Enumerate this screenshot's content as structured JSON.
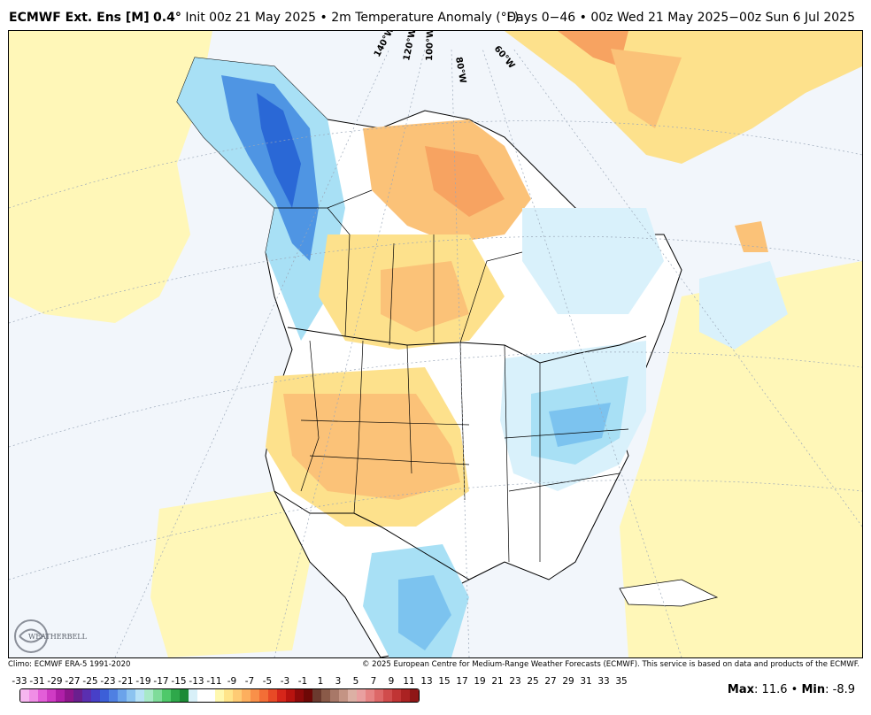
{
  "header": {
    "model": "ECMWF Ext. Ens [M]",
    "resolution": "0.4°",
    "init": "Init 00z 21 May 2025",
    "bullet": "•",
    "variable": "2m Temperature Anomaly (°F)",
    "valid": "Days 0−46 • 00z Wed 21 May 2025−00z Sun 6 Jul 2025"
  },
  "map": {
    "longitude_labels": [
      "140°W",
      "120°W",
      "100°W",
      "80°W",
      "60°W"
    ],
    "colors": {
      "ocean": "#f2f6fb",
      "land_neutral": "#ffffff",
      "warm_1": "#fff7b8",
      "warm_2": "#fde18c",
      "warm_3": "#fbc278",
      "warm_4": "#f7a361",
      "cool_1": "#d9f1fb",
      "cool_2": "#a8e0f5",
      "cool_3": "#7cc3ef",
      "cool_4": "#4f95e3",
      "cool_5": "#2a68d6",
      "border": "#000000",
      "graticule": "#9aa7b8"
    }
  },
  "logo": {
    "text": "WEATHERBELL"
  },
  "credits": {
    "climo": "Climo: ECMWF ERA-5 1991-2020",
    "copyright": "© 2025 European Centre for Medium-Range Weather Forecasts (ECMWF). This service is based on data and products of the ECMWF."
  },
  "colorbar": {
    "labels": [
      "-33",
      "-31",
      "-29",
      "-27",
      "-25",
      "-23",
      "-21",
      "-19",
      "-17",
      "-15",
      "-13",
      "-11",
      "-9",
      "-7",
      "-5",
      "-3",
      "-1",
      "1",
      "3",
      "5",
      "7",
      "9",
      "11",
      "13",
      "15",
      "17",
      "19",
      "21",
      "23",
      "25",
      "27",
      "29",
      "31",
      "33",
      "35"
    ],
    "colors": [
      "#f7b6f0",
      "#f08ee6",
      "#e35ed8",
      "#cf3bc4",
      "#b01fa8",
      "#8e168c",
      "#6a1f8e",
      "#5a2fb0",
      "#4740c8",
      "#3c5fd8",
      "#4f80e2",
      "#6ba3ea",
      "#8cc3f0",
      "#b8e2f6",
      "#a8e9c8",
      "#7fdc9a",
      "#4fc96a",
      "#2ea84a",
      "#1c8a36",
      "#d8f0f8",
      "#ffffff",
      "#ffffff",
      "#fff8b0",
      "#ffe48a",
      "#fecb74",
      "#fdaf5e",
      "#f99049",
      "#f36e36",
      "#e84a26",
      "#d6261a",
      "#b8130f",
      "#8e0a0a",
      "#6e0806",
      "#6b3a2e",
      "#8a5a48",
      "#a87868",
      "#c49484",
      "#dcb0a4",
      "#e9a0a0",
      "#e68484",
      "#dd6868",
      "#d04c4c",
      "#c03434",
      "#ab2222",
      "#8f1616"
    ]
  },
  "stats": {
    "max_label": "Max",
    "max_value": ": 11.6",
    "sep": "•",
    "min_label": "Min",
    "min_value": ": -8.9"
  }
}
